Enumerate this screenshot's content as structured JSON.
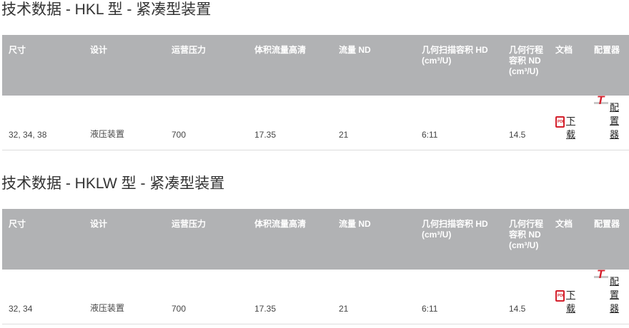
{
  "sections": [
    {
      "title": "技术数据 - HKL 型 - 紧凑型装置",
      "headers": [
        "尺寸",
        "设计",
        "运营压力",
        "体积流量高清",
        "流量 ND",
        "几何扫描容积 HD (cm³/U)",
        "几何行程容积 ND (cm³/U)",
        "文档",
        "配置器"
      ],
      "row": [
        "32, 34, 38",
        "液压装置",
        "700",
        "17.35",
        "21",
        "6:11",
        "14.5"
      ],
      "doc_link": "下载",
      "config_link": "配置器"
    },
    {
      "title": "技术数据 - HKLW 型 - 紧凑型装置",
      "headers": [
        "尺寸",
        "设计",
        "运营压力",
        "体积流量高清",
        "流量 ND",
        "几何扫描容积 HD (cm³/U)",
        "几何行程容积 ND (cm³/U)",
        "文档",
        "配置器"
      ],
      "row": [
        "32, 34",
        "液压装置",
        "700",
        "17.35",
        "21",
        "6:11",
        "14.5"
      ],
      "doc_link": "下载",
      "config_link": "配置器"
    }
  ],
  "colors": {
    "header_bg": "#b1b2b4",
    "accent": "#d4202c"
  },
  "icons": {
    "doc": "pdf-icon",
    "config": "configurator-icon"
  }
}
